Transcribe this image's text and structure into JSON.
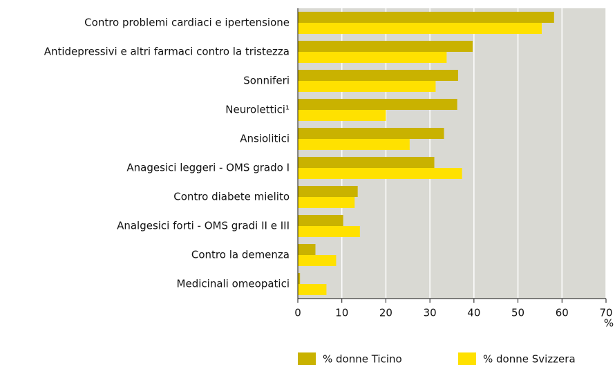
{
  "chart_data": {
    "type": "barh",
    "categories": [
      "Contro problemi cardiaci e ipertensione",
      "Antidepressivi e altri farmaci contro la tristezza",
      "Sonniferi",
      "Neurolettici¹",
      "Ansiolitici",
      "Anagesici leggeri - OMS grado I",
      "Contro diabete mielito",
      "Analgesici forti - OMS gradi II e III",
      "Contro la demenza",
      "Medicinali omeopatici"
    ],
    "series": [
      {
        "name": "% donne Ticino",
        "color": "#c9b200",
        "values": [
          58.2,
          39.7,
          36.4,
          36.2,
          33.2,
          31.0,
          13.6,
          10.3,
          4.0,
          0.5
        ]
      },
      {
        "name": "% donne Svizzera",
        "color": "#ffe100",
        "values": [
          55.4,
          33.8,
          31.3,
          20.0,
          25.4,
          37.3,
          12.9,
          14.1,
          8.7,
          6.5
        ]
      }
    ],
    "xlim": [
      0,
      70
    ],
    "xticks": [
      0,
      10,
      20,
      30,
      40,
      50,
      60,
      70
    ],
    "x_unit": "%",
    "grid": true
  }
}
